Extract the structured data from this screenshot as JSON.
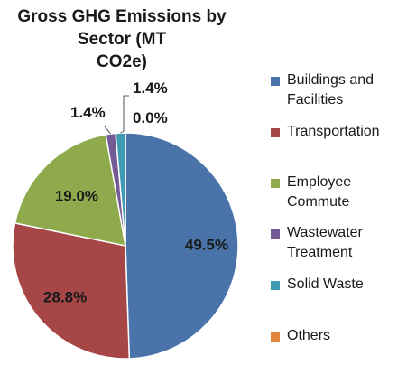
{
  "chart_data": {
    "type": "pie",
    "title": "Gross GHG Emissions by Sector (MT CO2e)",
    "title_lines": [
      "Gross GHG Emissions by Sector (MT",
      "CO2e)"
    ],
    "slices": [
      {
        "name": "Buildings and Facilities",
        "value": 49.5,
        "label": "49.5%",
        "color": "#4a74a9"
      },
      {
        "name": "Transportation",
        "value": 28.8,
        "label": "28.8%",
        "color": "#a64646"
      },
      {
        "name": "Employee Commute",
        "value": 19.0,
        "label": "19.0%",
        "color": "#8faa4c"
      },
      {
        "name": "Wastewater Treatment",
        "value": 1.4,
        "label": "1.4%",
        "color": "#745a94"
      },
      {
        "name": "Solid Waste",
        "value": 1.4,
        "label": "1.4%",
        "color": "#3f9ab3"
      },
      {
        "name": "Others",
        "value": 0.0,
        "label": "0.0%",
        "color": "#e0873b"
      }
    ],
    "legend": [
      {
        "lines": [
          "Buildings and",
          "Facilities"
        ],
        "color": "#4a74a9"
      },
      {
        "lines": [
          "Transportation"
        ],
        "color": "#a64646"
      },
      {
        "lines": [
          "Employee",
          "Commute"
        ],
        "color": "#8faa4c"
      },
      {
        "lines": [
          "Wastewater",
          "Treatment"
        ],
        "color": "#745a94"
      },
      {
        "lines": [
          "Solid Waste"
        ],
        "color": "#3f9ab3"
      },
      {
        "lines": [
          "Others"
        ],
        "color": "#e0873b"
      }
    ],
    "legend_position": "right",
    "start_angle_deg": 0,
    "direction": "clockwise"
  }
}
